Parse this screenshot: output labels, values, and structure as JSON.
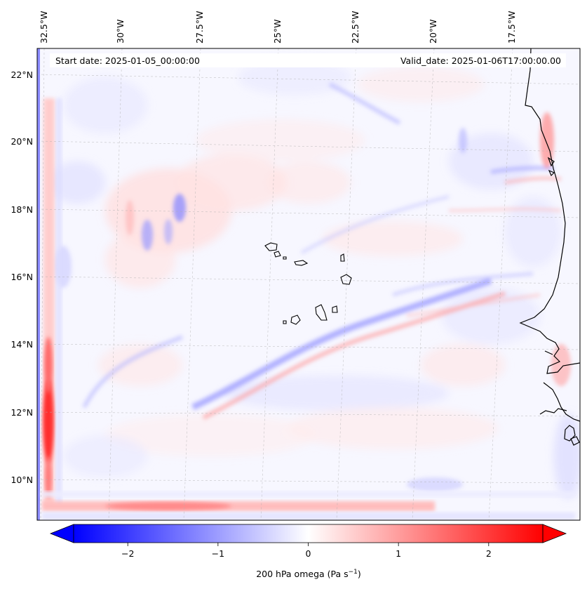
{
  "map": {
    "start_date": "Start date: 2025-01-05_00:00:00",
    "valid_date": "Valid_date: 2025-01-06T17:00:00.00",
    "lon_labels": [
      "32.5°W",
      "30°W",
      "27.5°W",
      "25°W",
      "22.5°W",
      "20°W",
      "17.5°W"
    ],
    "lat_labels": [
      "22°N",
      "20°N",
      "18°N",
      "16°N",
      "14°N",
      "12°N",
      "10°N"
    ],
    "field": "200 hPa omega"
  },
  "colorbar": {
    "label": "200 hPa omega (Pa s",
    "label_exponent": "−1",
    "label_close": ")",
    "ticks": [
      "−2",
      "−1",
      "0",
      "1",
      "2"
    ],
    "tick_values": [
      -2,
      -1,
      0,
      1,
      2
    ],
    "range": [
      -2.6,
      2.6
    ],
    "colors": {
      "negative": "#0000ff",
      "zero": "#ffffff",
      "positive": "#ff0000"
    },
    "extend": "both"
  }
}
